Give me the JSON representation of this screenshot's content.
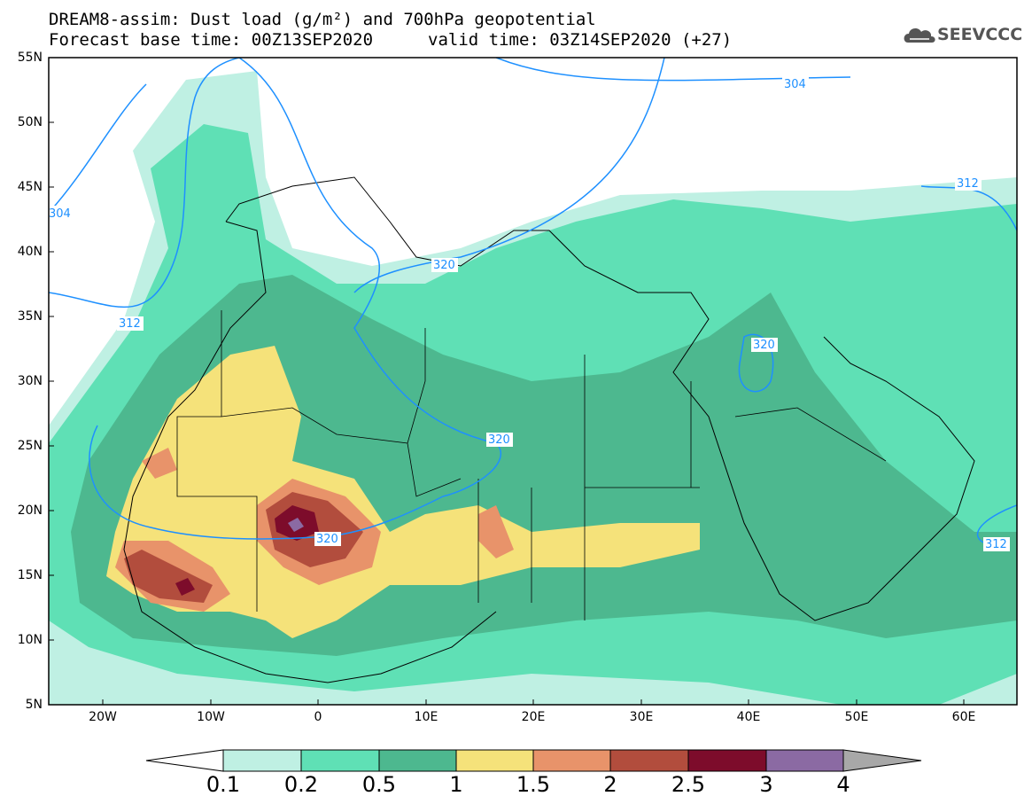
{
  "header": {
    "title_line1": "DREAM8-assim: Dust load (g/m²) and 700hPa geopotential",
    "title_line2_left": "Forecast base time: 00Z13SEP2020",
    "title_line2_right": "valid time: 03Z14SEP2020 (+27)",
    "logo_text": "SEEVCCC",
    "logo_icon": "cloud-icon"
  },
  "map": {
    "lat_labels": [
      "55N",
      "50N",
      "45N",
      "40N",
      "35N",
      "30N",
      "25N",
      "20N",
      "15N",
      "10N",
      "5N"
    ],
    "lon_labels": [
      "20W",
      "10W",
      "0",
      "10E",
      "20E",
      "30E",
      "40E",
      "50E",
      "60E"
    ],
    "contour_labels": [
      "304",
      "304",
      "312",
      "312",
      "312",
      "320",
      "320",
      "320",
      "320"
    ],
    "contour_color": "#1e90ff"
  },
  "colorbar": {
    "ticks": [
      "0.1",
      "0.2",
      "0.5",
      "1",
      "1.5",
      "2",
      "2.5",
      "3",
      "4"
    ],
    "colors": [
      "#bff0e3",
      "#5fe0b5",
      "#4db88f",
      "#f5e27a",
      "#e8936a",
      "#b24d3d",
      "#7d0c2b",
      "#8b6aa3",
      "#a8a8a8"
    ]
  }
}
